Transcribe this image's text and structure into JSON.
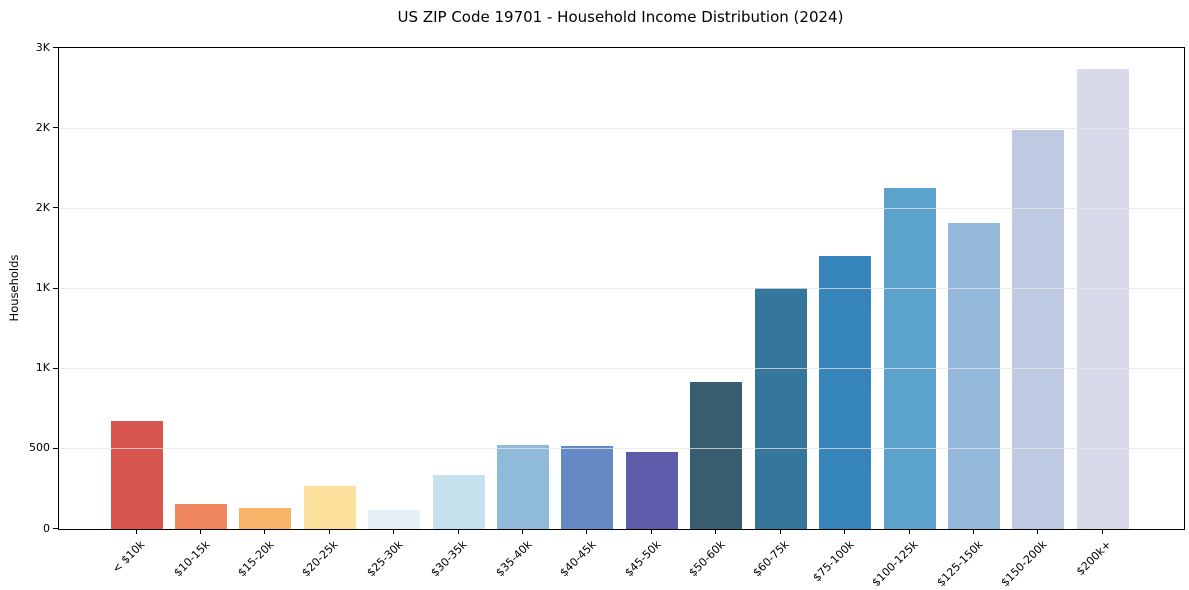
{
  "chart_data": {
    "type": "bar",
    "title": "US ZIP Code 19701 - Household Income Distribution (2024)",
    "xlabel": "",
    "ylabel": "Households",
    "categories": [
      "< $10k",
      "$10-15k",
      "$15-20k",
      "$20-25k",
      "$25-30k",
      "$30-35k",
      "$35-40k",
      "$40-45k",
      "$45-50k",
      "$50-60k",
      "$60-75k",
      "$75-100k",
      "$100-125k",
      "$125-150k",
      "$150-200k",
      "$200k+"
    ],
    "values": [
      675,
      155,
      134,
      270,
      120,
      338,
      525,
      518,
      482,
      918,
      1502,
      1700,
      2124,
      1908,
      2486,
      2870
    ],
    "bar_colors": [
      "#d9564e",
      "#f0875f",
      "#f8b368",
      "#fbe09c",
      "#e4f0f5",
      "#c6e1ee",
      "#8fbada",
      "#6589c4",
      "#5d5baa",
      "#395e72",
      "#36769b",
      "#3585bb",
      "#5ca3cd",
      "#94b8da",
      "#bec9e2",
      "#d8dae9"
    ],
    "ylim": [
      0,
      3000
    ],
    "yticks": [
      {
        "value": 0,
        "label": "0"
      },
      {
        "value": 500,
        "label": "500"
      },
      {
        "value": 1000,
        "label": "1K"
      },
      {
        "value": 1500,
        "label": "1K"
      },
      {
        "value": 2000,
        "label": "2K"
      },
      {
        "value": 2500,
        "label": "2K"
      },
      {
        "value": 3000,
        "label": "3K"
      }
    ],
    "grid": "horizontal",
    "legend": "none",
    "grid_color": "#e4e4e4",
    "axis_color": "#000000",
    "background_color": "#ffffff"
  }
}
